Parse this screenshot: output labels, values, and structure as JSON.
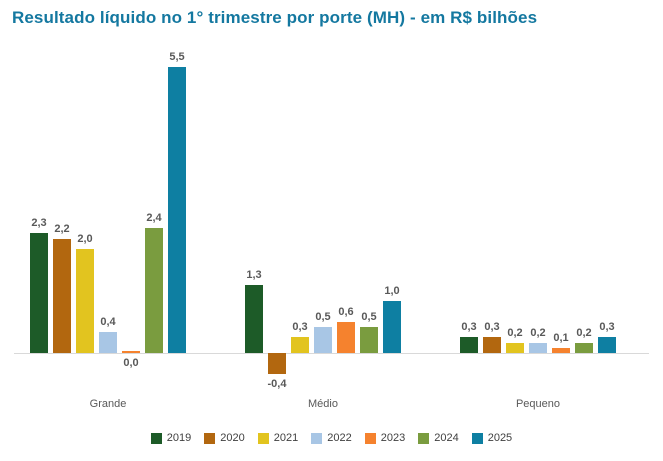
{
  "title": "Resultado líquido no 1° trimestre por porte (MH) - em R$ bilhões",
  "colors": {
    "title": "#1478a0",
    "value_label": "#595959",
    "axis_line": "#d9d9d9"
  },
  "chart_data": {
    "type": "bar",
    "title": "Resultado líquido no 1° trimestre por porte (MH) - em R$ bilhões",
    "categories": [
      "Grande",
      "Médio",
      "Pequeno"
    ],
    "series": [
      {
        "name": "2019",
        "color": "#1d5b28",
        "values": [
          2.3,
          1.3,
          0.3
        ]
      },
      {
        "name": "2020",
        "color": "#b2670f",
        "values": [
          2.2,
          -0.4,
          0.3
        ]
      },
      {
        "name": "2021",
        "color": "#e2c41f",
        "values": [
          2.0,
          0.3,
          0.2
        ]
      },
      {
        "name": "2022",
        "color": "#a8c6e5",
        "values": [
          0.4,
          0.5,
          0.2
        ]
      },
      {
        "name": "2023",
        "color": "#f5822e",
        "values": [
          0.0,
          0.6,
          0.1
        ]
      },
      {
        "name": "2024",
        "color": "#7a9c3f",
        "values": [
          2.4,
          0.5,
          0.2
        ]
      },
      {
        "name": "2025",
        "color": "#0e7fa2",
        "values": [
          5.5,
          1.0,
          0.3
        ]
      }
    ],
    "value_labels": [
      [
        "2,3",
        "2,2",
        "2,0",
        "0,4",
        "0,0",
        "2,4",
        "5,5"
      ],
      [
        "1,3",
        "-0,4",
        "0,3",
        "0,5",
        "0,6",
        "0,5",
        "1,0"
      ],
      [
        "0,3",
        "0,3",
        "0,2",
        "0,2",
        "0,1",
        "0,2",
        "0,3"
      ]
    ],
    "xlabel": "",
    "ylabel": "R$ bilhões",
    "ylim": [
      -0.5,
      5.5
    ],
    "grid": false,
    "legend_position": "bottom"
  }
}
